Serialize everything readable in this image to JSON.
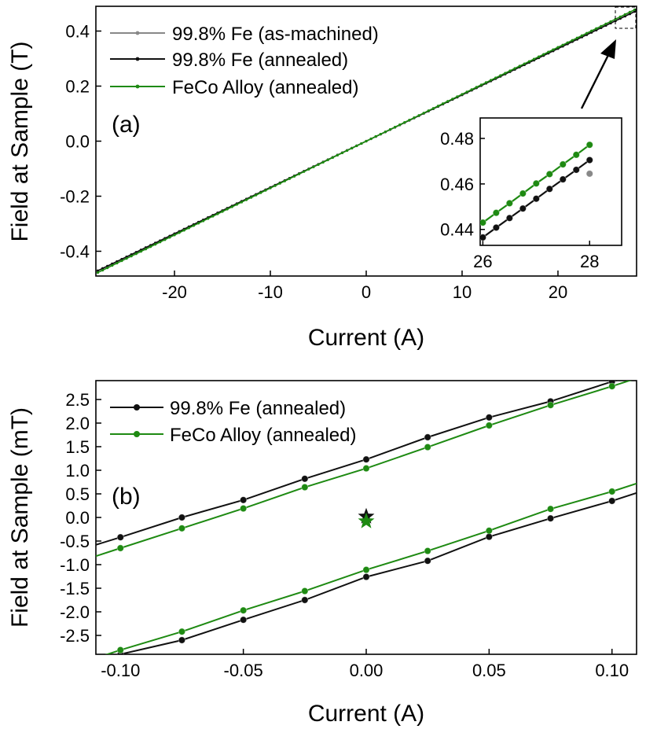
{
  "colors": {
    "as_machined": "#888888",
    "annealed_fe": "#111111",
    "feco": "#1e8a12"
  },
  "chart_data": [
    {
      "type": "line",
      "panel_label": "(a)",
      "xlabel": "Current (A)",
      "ylabel": "Field at Sample (T)",
      "xlim": [
        -28.2,
        28.2
      ],
      "ylim": [
        -0.49,
        0.49
      ],
      "x_ticks": [
        -20,
        -10,
        0,
        10,
        20
      ],
      "x_tick_labels": [
        "-20",
        "-10",
        "0",
        "10",
        "20"
      ],
      "y_ticks": [
        -0.4,
        -0.2,
        0.0,
        0.2,
        0.4
      ],
      "y_tick_labels": [
        "-0.4",
        "-0.2",
        "0.0",
        "0.2",
        "0.4"
      ],
      "legend_position": "top-left",
      "series": [
        {
          "name": "99.8% Fe (as-machined)",
          "color": "#888888",
          "x_range": [
            -28,
            28
          ],
          "slope": 0.0168,
          "intercept": 0
        },
        {
          "name": "99.8% Fe (annealed)",
          "color": "#111111",
          "x_range": [
            -28,
            28
          ],
          "slope": 0.01682,
          "intercept": 0
        },
        {
          "name": "FeCo Alloy (annealed)",
          "color": "#1e8a12",
          "x_range": [
            -28,
            28
          ],
          "slope": 0.01705,
          "intercept": 0
        }
      ]
    },
    {
      "type": "scatter",
      "role": "inset",
      "xlim": [
        25.95,
        28.6
      ],
      "ylim": [
        0.433,
        0.489
      ],
      "x_ticks": [
        26,
        28
      ],
      "x_tick_labels": [
        "26",
        "28"
      ],
      "y_ticks": [
        0.44,
        0.46,
        0.48
      ],
      "y_tick_labels": [
        "0.44",
        "0.46",
        "0.48"
      ],
      "series": [
        {
          "name": "99.8% Fe (annealed)",
          "color": "#111111",
          "x": [
            26.0,
            26.25,
            26.5,
            26.75,
            27.0,
            27.25,
            27.5,
            27.75,
            28.0
          ],
          "y": [
            0.4365,
            0.4408,
            0.445,
            0.4492,
            0.4535,
            0.4578,
            0.462,
            0.4662,
            0.4705
          ]
        },
        {
          "name": "FeCo Alloy (annealed)",
          "color": "#1e8a12",
          "x": [
            26.0,
            26.25,
            26.5,
            26.75,
            27.0,
            27.25,
            27.5,
            27.75,
            28.0
          ],
          "y": [
            0.443,
            0.4473,
            0.4515,
            0.4558,
            0.4602,
            0.4643,
            0.4686,
            0.4728,
            0.4772
          ]
        },
        {
          "name": "99.8% Fe (as-machined)",
          "color": "#888888",
          "x": [
            28.0
          ],
          "y": [
            0.4645
          ]
        }
      ]
    },
    {
      "type": "line",
      "panel_label": "(b)",
      "xlabel": "Current (A)",
      "ylabel": "Field at Sample (mT)",
      "xlim": [
        -0.11,
        0.11
      ],
      "ylim": [
        -2.9,
        2.9
      ],
      "x_ticks": [
        -0.1,
        -0.05,
        0.0,
        0.05,
        0.1
      ],
      "x_tick_labels": [
        "-0.10",
        "-0.05",
        "0.00",
        "0.05",
        "0.10"
      ],
      "y_ticks": [
        -2.5,
        -2.0,
        -1.5,
        -1.0,
        -0.5,
        0.0,
        0.5,
        1.0,
        1.5,
        2.0,
        2.5
      ],
      "y_tick_labels": [
        "-2.5",
        "-2.0",
        "-1.5",
        "-1.0",
        "-0.5",
        "0.0",
        "0.5",
        "1.0",
        "1.5",
        "2.0",
        "2.5"
      ],
      "legend_position": "top-left",
      "series": [
        {
          "name": "99.8% Fe (annealed)",
          "color": "#111111",
          "branch": "upper",
          "x": [
            -0.1,
            -0.075,
            -0.05,
            -0.025,
            0.0,
            0.025,
            0.05,
            0.075,
            0.1
          ],
          "y": [
            -0.42,
            0.0,
            0.37,
            0.82,
            1.23,
            1.7,
            2.12,
            2.46,
            2.88
          ],
          "line_x": [
            -0.11,
            0.11
          ],
          "line_y": [
            -0.58,
            3.0
          ]
        },
        {
          "name": "FeCo Alloy (annealed)",
          "color": "#1e8a12",
          "branch": "upper",
          "x": [
            -0.1,
            -0.075,
            -0.05,
            -0.025,
            0.0,
            0.025,
            0.05,
            0.075,
            0.1
          ],
          "y": [
            -0.65,
            -0.23,
            0.19,
            0.64,
            1.04,
            1.49,
            1.95,
            2.38,
            2.78
          ],
          "line_x": [
            -0.11,
            0.11
          ],
          "line_y": [
            -0.82,
            2.95
          ]
        },
        {
          "name": "99.8% Fe (annealed)",
          "color": "#111111",
          "branch": "lower",
          "x": [
            -0.1,
            -0.075,
            -0.05,
            -0.025,
            0.0,
            0.025,
            0.05,
            0.075,
            0.1
          ],
          "y": [
            -2.9,
            -2.6,
            -2.17,
            -1.75,
            -1.26,
            -0.92,
            -0.41,
            -0.02,
            0.35
          ],
          "line_x": [
            -0.11,
            0.11
          ],
          "line_y": [
            -3.1,
            0.52
          ]
        },
        {
          "name": "FeCo Alloy (annealed)",
          "color": "#1e8a12",
          "branch": "lower",
          "x": [
            -0.1,
            -0.075,
            -0.05,
            -0.025,
            0.0,
            0.025,
            0.05,
            0.075,
            0.1
          ],
          "y": [
            -2.81,
            -2.42,
            -1.97,
            -1.56,
            -1.11,
            -0.71,
            -0.28,
            0.18,
            0.55
          ],
          "line_x": [
            -0.11,
            0.11
          ],
          "line_y": [
            -2.98,
            0.72
          ]
        }
      ],
      "markers": [
        {
          "name": "99.8% Fe (annealed)",
          "color": "#111111",
          "shape": "star",
          "x": 0.0,
          "y": 0.02
        },
        {
          "name": "FeCo Alloy (annealed)",
          "color": "#1e8a12",
          "shape": "star",
          "x": 0.0,
          "y": -0.08
        }
      ]
    }
  ]
}
